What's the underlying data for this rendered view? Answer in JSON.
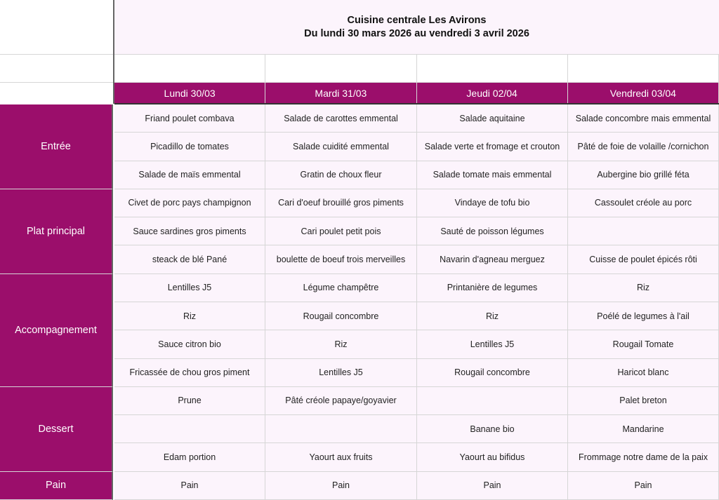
{
  "header": {
    "title_line1": "Cuisine centrale Les Avirons",
    "title_line2": "Du lundi 30 mars 2026 au vendredi 3 avril 2026"
  },
  "days": [
    "Lundi 30/03",
    "Mardi 31/03",
    "Jeudi 02/04",
    "Vendredi 03/04"
  ],
  "colors": {
    "accent": "#9b0e6b",
    "cell_bg": "#fcf4fc"
  },
  "categories": [
    {
      "label": "Entrée",
      "rows": [
        [
          "Friand poulet combava",
          "Salade de carottes emmental",
          "Salade aquitaine",
          "Salade concombre mais emmental"
        ],
        [
          "Picadillo de tomates",
          "Salade cuidité emmental",
          "Salade verte et fromage et crouton",
          "Pâté de foie de volaille /cornichon"
        ],
        [
          "Salade de maïs  emmental",
          "Gratin de choux fleur",
          "Salade tomate mais emmental",
          "Aubergine bio grillé féta"
        ]
      ]
    },
    {
      "label": "Plat principal",
      "rows": [
        [
          "Civet de porc pays champignon",
          "Cari d'oeuf brouillé gros piments",
          "Vindaye de tofu bio",
          "Cassoulet créole au porc"
        ],
        [
          "Sauce sardines gros piments",
          "Cari poulet petit pois",
          "Sauté de poisson légumes",
          ""
        ],
        [
          "steack de blé Pané",
          "boulette de boeuf  trois merveilles",
          "Navarin d'agneau merguez",
          "Cuisse de poulet épicés rôti"
        ]
      ]
    },
    {
      "label": "Accompagnement",
      "rows": [
        [
          "Lentilles J5",
          "Légume champêtre",
          "Printanière de legumes",
          "Riz"
        ],
        [
          "Riz",
          "Rougail concombre",
          "Riz",
          "Poélé de legumes à l'ail"
        ],
        [
          "Sauce citron bio",
          "Riz",
          "Lentilles J5",
          "Rougail Tomate"
        ],
        [
          "Fricassée de chou gros piment",
          "Lentilles J5",
          "Rougail concombre",
          "Haricot blanc"
        ]
      ]
    },
    {
      "label": "Dessert",
      "rows": [
        [
          "Prune",
          "Pâté créole papaye/goyavier",
          "",
          "Palet breton"
        ],
        [
          "",
          "",
          "Banane bio",
          "Mandarine"
        ],
        [
          "Edam portion",
          "Yaourt aux fruits",
          "Yaourt au bifidus",
          "Frommage notre dame de la paix"
        ]
      ]
    },
    {
      "label": "Pain",
      "rows": [
        [
          "Pain",
          "Pain",
          "Pain",
          "Pain"
        ]
      ]
    }
  ]
}
